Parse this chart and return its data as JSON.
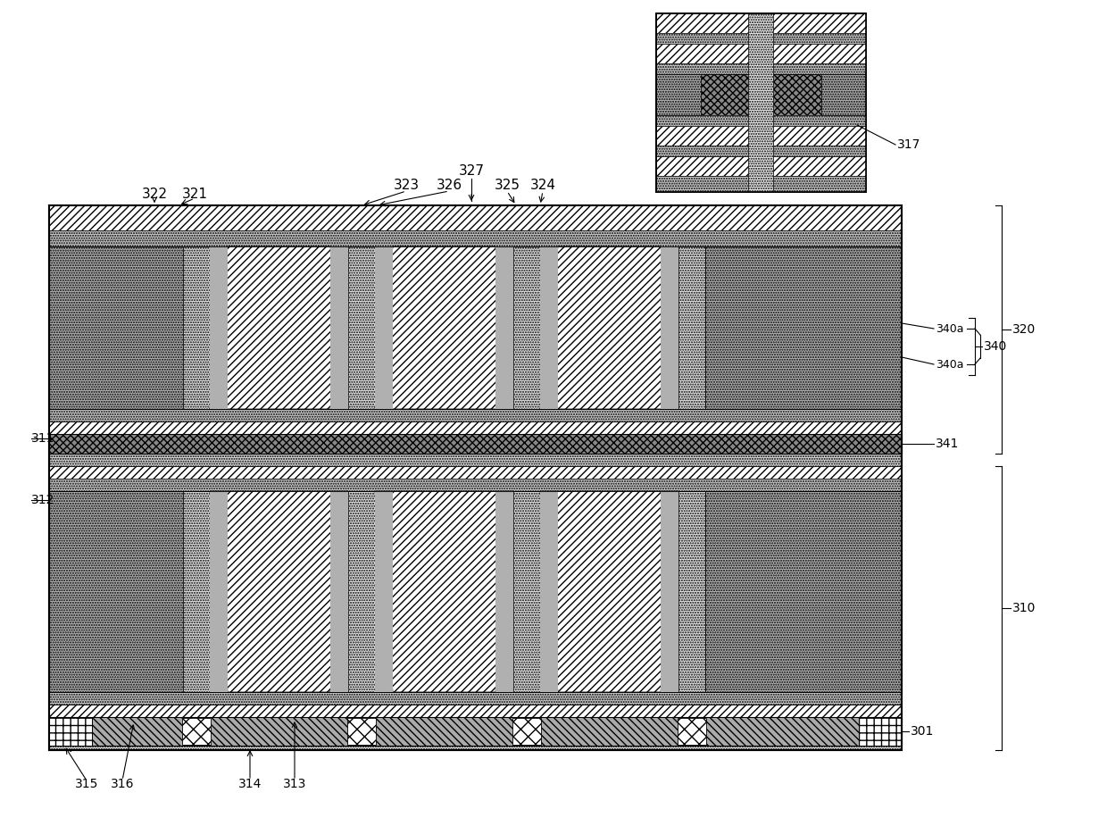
{
  "fig_width": 12.4,
  "fig_height": 9.25,
  "bg_color": "#ffffff",
  "ML": 55,
  "MR": 1010,
  "MT": 230,
  "MB": 840,
  "IX": 735,
  "IY": 15,
  "IW": 235,
  "IH": 200
}
